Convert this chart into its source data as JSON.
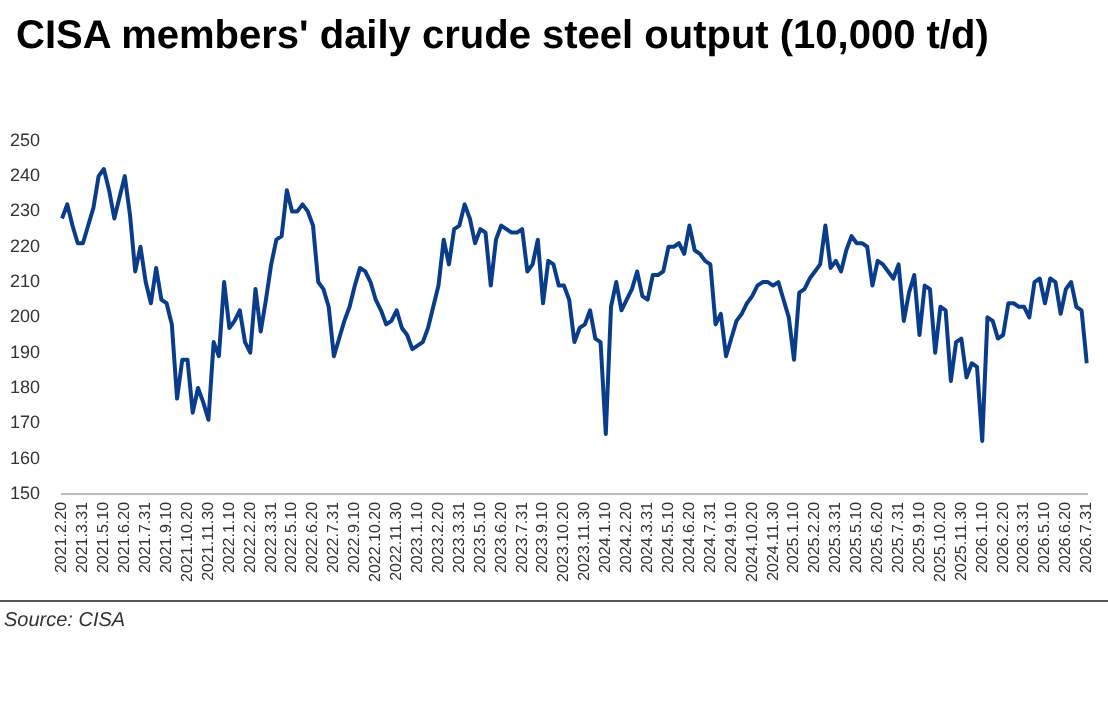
{
  "chart_data": {
    "type": "line",
    "title": "CISA members' daily crude steel output (10,000 t/d)",
    "categories": [
      "2021.2.20",
      null,
      null,
      null,
      "2021.3.31",
      null,
      null,
      null,
      "2021.5.10",
      null,
      null,
      null,
      "2021.6.20",
      null,
      null,
      null,
      "2021.7.31",
      null,
      null,
      null,
      "2021.9.10",
      null,
      null,
      null,
      "2021.10.20",
      null,
      null,
      null,
      "2021.11.30",
      null,
      null,
      null,
      "2022.1.10",
      null,
      null,
      null,
      "2022.2.20",
      null,
      null,
      null,
      "2022.3.31",
      null,
      null,
      null,
      "2022.5.10",
      null,
      null,
      null,
      "2022.6.20",
      null,
      null,
      null,
      "2022.7.31",
      null,
      null,
      null,
      "2022.9.10",
      null,
      null,
      null,
      "2022.10.20",
      null,
      null,
      null,
      "2022.11.30",
      null,
      null,
      null,
      "2023.1.10",
      null,
      null,
      null,
      "2023.2.20",
      null,
      null,
      null,
      "2023.3.31",
      null,
      null,
      null,
      "2023.5.10",
      null,
      null,
      null,
      "2023.6.20",
      null,
      null,
      null,
      "2023.7.31",
      null,
      null,
      null,
      "2023.9.10",
      null,
      null,
      null,
      "2023.10.20",
      null,
      null,
      null,
      "2023.11.30",
      null,
      null,
      null,
      "2024.1.10",
      null,
      null,
      null,
      "2024.2.20",
      null,
      null,
      null,
      "2024.3.31",
      null,
      null,
      null,
      "2024.5.10",
      null,
      null,
      null,
      "2024.6.20",
      null,
      null,
      null,
      "2024.7.31",
      null,
      null,
      null,
      "2024.9.10",
      null,
      null,
      null,
      "2024.10.20",
      null,
      null,
      null,
      "2024.11.30",
      null,
      null,
      null,
      "2025.1.10",
      null,
      null,
      null,
      "2025.2.20",
      null,
      null,
      null,
      "2025.3.31",
      null,
      null,
      null,
      "2025.5.10",
      null,
      null,
      null,
      "2025.6.20",
      null,
      null,
      null,
      "2025.7.31",
      null,
      null,
      null,
      "2025.9.10",
      null,
      null,
      null,
      "2025.10.20",
      null,
      null,
      null,
      "2025.11.30",
      null,
      null,
      null,
      "2026.1.10",
      null,
      null,
      null,
      "2026.2.20",
      null,
      null,
      null,
      "2026.3.31",
      null,
      null,
      null,
      "2026.5.10",
      null,
      null,
      null,
      "2026.6.20",
      null,
      null,
      null,
      "2026.7.31"
    ],
    "series": [
      {
        "color": "#0a3c8c",
        "values": [
          228,
          232,
          226,
          221,
          221,
          226,
          231,
          240,
          242,
          236,
          228,
          234,
          240,
          229,
          213,
          220,
          210,
          204,
          214,
          205,
          204,
          198,
          177,
          188,
          188,
          173,
          180,
          176,
          171,
          193,
          189,
          210,
          197,
          199,
          202,
          193,
          190,
          208,
          196,
          205,
          215,
          222,
          223,
          236,
          230,
          230,
          232,
          230,
          226,
          210,
          208,
          203,
          189,
          194,
          199,
          203,
          209,
          214,
          213,
          210,
          205,
          202,
          198,
          199,
          202,
          197,
          195,
          191,
          192,
          193,
          197,
          203,
          209,
          222,
          215,
          225,
          226,
          232,
          228,
          221,
          225,
          224,
          209,
          222,
          226,
          225,
          224,
          224,
          225,
          213,
          215,
          222,
          204,
          216,
          215,
          209,
          209,
          205,
          193,
          197,
          198,
          202,
          194,
          193,
          167,
          203,
          210,
          202,
          205,
          208,
          213,
          206,
          205,
          212,
          212,
          213,
          220,
          220,
          221,
          218,
          226,
          219,
          218,
          216,
          215,
          198,
          201,
          189,
          194,
          199,
          201,
          204,
          206,
          209,
          210,
          210,
          209,
          210,
          205,
          200,
          188,
          207,
          208,
          211,
          213,
          215,
          226,
          214,
          216,
          213,
          219,
          223,
          221,
          221,
          220,
          209,
          216,
          215,
          213,
          211,
          215,
          199,
          207,
          212,
          195,
          209,
          208,
          190,
          203,
          202,
          182,
          193,
          194,
          183,
          187,
          186,
          165,
          200,
          199,
          194,
          195,
          204,
          204,
          203,
          203,
          200,
          210,
          211,
          204,
          211,
          210,
          201,
          208,
          210,
          203,
          202,
          187
        ]
      }
    ],
    "ylim": [
      150,
      250
    ],
    "yticks": [
      150,
      160,
      170,
      180,
      190,
      200,
      210,
      220,
      230,
      240,
      250
    ],
    "grid": false,
    "legend": false,
    "marker": "none",
    "line_style": "solid",
    "annotations": [
      "Source: CISA"
    ]
  }
}
